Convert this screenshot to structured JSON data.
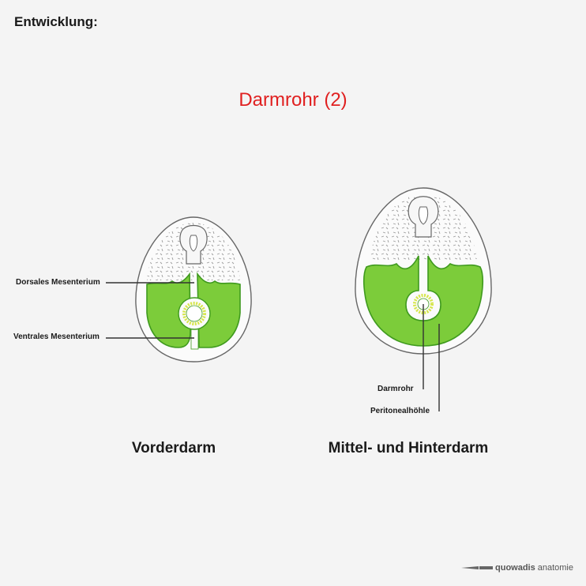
{
  "header": {
    "title": "Entwicklung:"
  },
  "figure_title": "Darmrohr (2)",
  "left_diagram": {
    "caption": "Vorderdarm",
    "labels": {
      "dorsal": "Dorsales Mesenterium",
      "ventral": "Ventrales Mesenterium"
    }
  },
  "right_diagram": {
    "caption": "Mittel- und Hinterdarm",
    "labels": {
      "gut": "Darmrohr",
      "cavity": "Peritonealhöhle"
    }
  },
  "brand": {
    "name": "quowadis",
    "suffix": "anatomie"
  },
  "colors": {
    "title": "#e02020",
    "cavity_fill": "#7ccc3a",
    "cavity_stroke": "#3f9a1e",
    "gut_ring": "#d6e64a",
    "outline": "#555555",
    "leader": "#333333"
  }
}
